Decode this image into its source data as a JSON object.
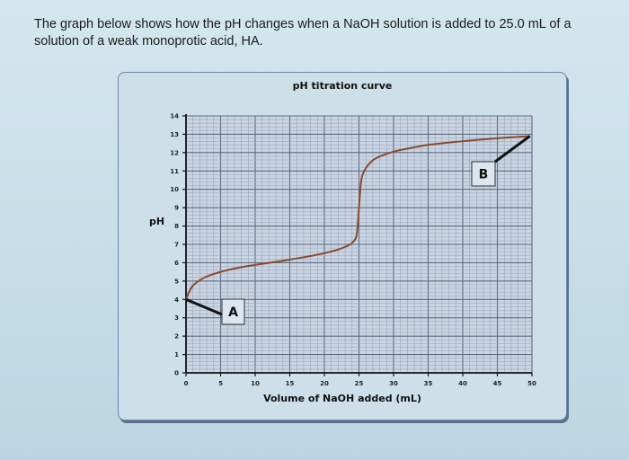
{
  "question": {
    "text": "The graph below shows how the pH changes when a NaOH solution is added to 25.0 mL of a solution of a weak monoprotic acid, HA."
  },
  "chart": {
    "title": "pH titration curve",
    "xlabel": "Volume of NaOH added (mL)",
    "ylabel": "pH",
    "labels": {
      "a": "A",
      "b": "B"
    }
  },
  "colors": {
    "curve": "#8b4a2b",
    "grid_major": "#5e6a80",
    "grid_minor": "#98a4b8",
    "plot_bg": "#c9d5e3",
    "pointer": "#111111"
  },
  "chart_data": {
    "type": "line",
    "title": "pH titration curve",
    "xlabel": "Volume of NaOH added (mL)",
    "ylabel": "pH",
    "xlim": [
      0,
      50
    ],
    "ylim": [
      0,
      14
    ],
    "x_ticks": [
      0,
      5,
      10,
      15,
      20,
      25,
      30,
      35,
      40,
      45,
      50
    ],
    "y_ticks": [
      0,
      1,
      2,
      3,
      4,
      5,
      6,
      7,
      8,
      9,
      10,
      11,
      12,
      13,
      14
    ],
    "grid": true,
    "series": [
      {
        "name": "pH titration curve",
        "x": [
          0,
          0.5,
          1,
          2,
          3,
          5,
          7.5,
          10,
          12.5,
          15,
          17.5,
          20,
          22,
          23.5,
          24.3,
          24.7,
          25,
          25.3,
          25.7,
          26.5,
          27.5,
          30,
          32.5,
          35,
          40,
          45,
          49.7
        ],
        "y": [
          4.0,
          4.45,
          4.75,
          5.05,
          5.25,
          5.5,
          5.72,
          5.88,
          6.02,
          6.17,
          6.33,
          6.52,
          6.72,
          6.95,
          7.2,
          7.6,
          9.0,
          10.4,
          10.95,
          11.4,
          11.7,
          12.05,
          12.25,
          12.42,
          12.62,
          12.78,
          12.9
        ]
      }
    ],
    "annotations": [
      {
        "label": "A",
        "points_to": {
          "x": 0,
          "y": 4.0
        }
      },
      {
        "label": "B",
        "points_to": {
          "x": 49.7,
          "y": 12.9
        }
      }
    ]
  }
}
